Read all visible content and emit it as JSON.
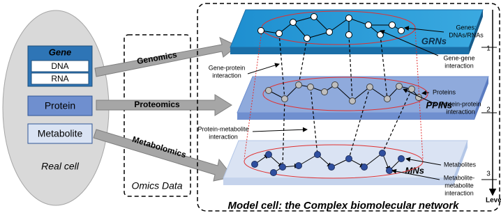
{
  "real_cell": {
    "gene": "Gene",
    "dna": "DNA",
    "rna": "RNA",
    "protein": "Protein",
    "metabolite": "Metabolite",
    "label": "Real cell"
  },
  "omics": {
    "genomics": "Genomics",
    "proteomics": "Proteomics",
    "metabolomics": "Metabolomics",
    "label": "Omics Data"
  },
  "model": {
    "layers": [
      "GRNs",
      "PPINs",
      "MNs"
    ],
    "annotations": {
      "genes": [
        "Genes:",
        "DNAs/RNAs"
      ],
      "gene_gene": [
        "Gene-gene",
        "interaction"
      ],
      "gene_protein": [
        "Gene-protein",
        "interaction"
      ],
      "proteins": [
        "Proteins"
      ],
      "protein_protein": [
        "Protein-protein",
        "interaction"
      ],
      "protein_metabolite": [
        "Protein-metabolite",
        "interaction"
      ],
      "metabolites": [
        "Metabolites"
      ],
      "metabolite_metabolite": [
        "Metabolite-",
        "metabolite",
        "interaction"
      ]
    },
    "levels": [
      "1",
      "2",
      "3"
    ],
    "level_label": "Leve",
    "title": "Model cell: the Complex biomolecular network"
  }
}
